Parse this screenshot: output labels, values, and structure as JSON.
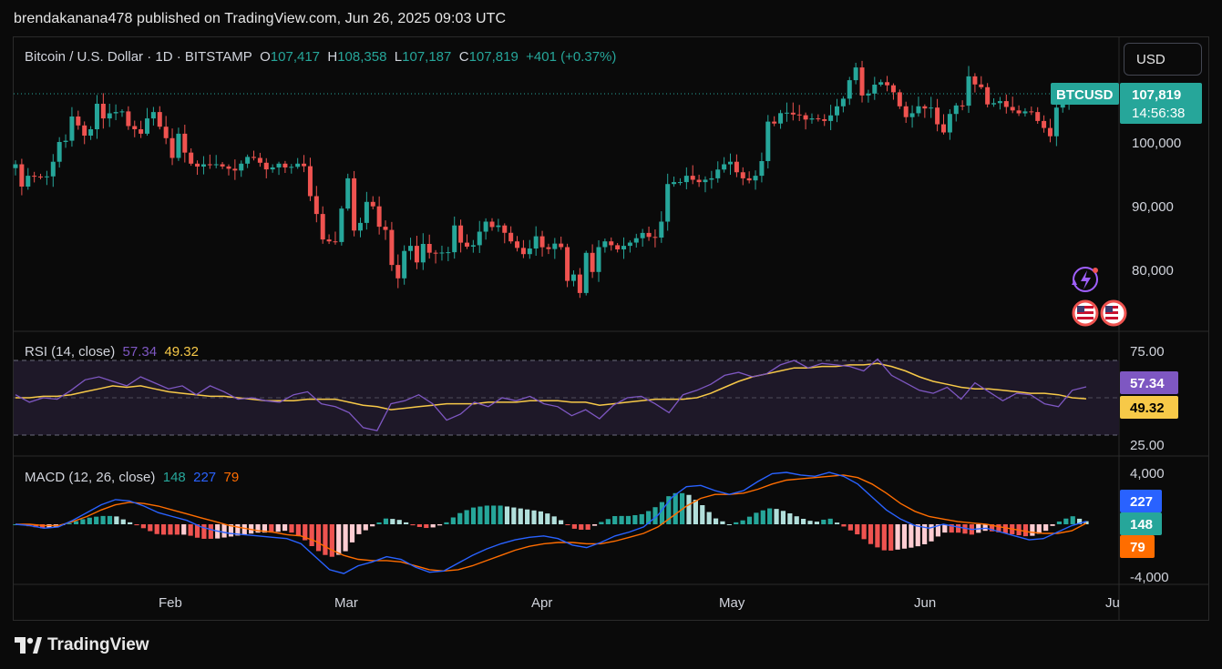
{
  "header": {
    "published": "brendakanana478 published on TradingView.com, Jun 26, 2025 09:03 UTC"
  },
  "currency_button": "USD",
  "symbol": {
    "title": "Bitcoin / U.S. Dollar · 1D · BITSTAMP",
    "o_label": "O",
    "o": "107,417",
    "h_label": "H",
    "h": "108,358",
    "l_label": "L",
    "l": "107,187",
    "c_label": "C",
    "c": "107,819",
    "change": "+401 (+0.37%)"
  },
  "price_tag": {
    "ticker": "BTCUSD",
    "price": "107,819",
    "countdown": "14:56:38"
  },
  "rsi": {
    "label": "RSI (14, close)",
    "value": "57.34",
    "ma": "49.32"
  },
  "macd": {
    "label": "MACD (12, 26, close)",
    "hist": "148",
    "macd": "227",
    "signal": "79"
  },
  "colors": {
    "up": "#26a69a",
    "down": "#ef5350",
    "rsi_line": "#7e57c2",
    "rsi_ma": "#f7c948",
    "macd_line": "#2962ff",
    "signal_line": "#ff6d00",
    "hist_up": "#26a69a",
    "hist_up_light": "#b2dfdb",
    "hist_down": "#ef5350",
    "hist_down_light": "#ffcdd2"
  },
  "logo_text": "TradingView",
  "chart_data": [
    {
      "type": "candlestick",
      "title": "Bitcoin / U.S. Dollar · 1D · BITSTAMP",
      "x_tick_labels": [
        "Feb",
        "Mar",
        "Apr",
        "May",
        "Jun",
        "Ju"
      ],
      "y_tick_labels": [
        "100,000",
        "90,000",
        "80,000"
      ],
      "ylim": [
        74000,
        113000
      ],
      "close_path": [
        [
          "2025-01-08",
          96500
        ],
        [
          "2025-01-09",
          93000
        ],
        [
          "2025-01-10",
          94700
        ],
        [
          "2025-01-12",
          94500
        ],
        [
          "2025-01-13",
          94600
        ],
        [
          "2025-01-14",
          96900
        ],
        [
          "2025-01-15",
          100000
        ],
        [
          "2025-01-16",
          100200
        ],
        [
          "2025-01-17",
          104000
        ],
        [
          "2025-01-19",
          101000
        ],
        [
          "2025-01-20",
          102000
        ],
        [
          "2025-01-21",
          106000
        ],
        [
          "2025-01-22",
          103700
        ],
        [
          "2025-01-23",
          104500
        ],
        [
          "2025-01-24",
          104700
        ],
        [
          "2025-01-25",
          104800
        ],
        [
          "2025-01-26",
          102500
        ],
        [
          "2025-01-27",
          102000
        ],
        [
          "2025-01-28",
          101300
        ],
        [
          "2025-01-29",
          103700
        ],
        [
          "2025-01-30",
          104700
        ],
        [
          "2025-01-31",
          102400
        ],
        [
          "2025-02-01",
          100600
        ],
        [
          "2025-02-02",
          97500
        ],
        [
          "2025-02-03",
          101300
        ],
        [
          "2025-02-05",
          96600
        ],
        [
          "2025-02-07",
          96500
        ],
        [
          "2025-02-09",
          96500
        ],
        [
          "2025-02-11",
          95800
        ],
        [
          "2025-02-13",
          96600
        ],
        [
          "2025-02-15",
          97500
        ],
        [
          "2025-02-17",
          95700
        ],
        [
          "2025-02-19",
          96600
        ],
        [
          "2025-02-21",
          96100
        ],
        [
          "2025-02-23",
          96200
        ],
        [
          "2025-02-24",
          91500
        ],
        [
          "2025-02-25",
          88700
        ],
        [
          "2025-02-26",
          84700
        ],
        [
          "2025-02-27",
          84400
        ],
        [
          "2025-02-28",
          84300
        ],
        [
          "2025-03-02",
          94300
        ],
        [
          "2025-03-03",
          86100
        ],
        [
          "2025-03-04",
          87300
        ],
        [
          "2025-03-05",
          90600
        ],
        [
          "2025-03-06",
          89900
        ],
        [
          "2025-03-07",
          86700
        ],
        [
          "2025-03-08",
          86200
        ],
        [
          "2025-03-09",
          80700
        ],
        [
          "2025-03-10",
          78600
        ],
        [
          "2025-03-11",
          82900
        ],
        [
          "2025-03-12",
          83700
        ],
        [
          "2025-03-13",
          81100
        ],
        [
          "2025-03-14",
          84000
        ],
        [
          "2025-03-16",
          82600
        ],
        [
          "2025-03-18",
          82700
        ],
        [
          "2025-03-19",
          86900
        ],
        [
          "2025-03-20",
          84200
        ],
        [
          "2025-03-22",
          83800
        ],
        [
          "2025-03-24",
          87500
        ],
        [
          "2025-03-26",
          86900
        ],
        [
          "2025-03-28",
          84400
        ],
        [
          "2025-03-30",
          82400
        ],
        [
          "2025-04-01",
          85200
        ],
        [
          "2025-04-03",
          83200
        ],
        [
          "2025-04-05",
          83500
        ],
        [
          "2025-04-06",
          78200
        ],
        [
          "2025-04-07",
          79200
        ],
        [
          "2025-04-08",
          76300
        ],
        [
          "2025-04-09",
          82600
        ],
        [
          "2025-04-10",
          79600
        ],
        [
          "2025-04-11",
          83500
        ],
        [
          "2025-04-13",
          83800
        ],
        [
          "2025-04-15",
          83700
        ],
        [
          "2025-04-17",
          84900
        ],
        [
          "2025-04-19",
          85100
        ],
        [
          "2025-04-20",
          85000
        ],
        [
          "2025-04-21",
          87500
        ],
        [
          "2025-04-22",
          93400
        ],
        [
          "2025-04-23",
          93700
        ],
        [
          "2025-04-25",
          94700
        ],
        [
          "2025-04-27",
          93700
        ],
        [
          "2025-04-29",
          94300
        ],
        [
          "2025-05-01",
          96500
        ],
        [
          "2025-05-02",
          96900
        ],
        [
          "2025-05-04",
          94300
        ],
        [
          "2025-05-06",
          94700
        ],
        [
          "2025-05-07",
          97000
        ],
        [
          "2025-05-08",
          103200
        ],
        [
          "2025-05-09",
          102900
        ],
        [
          "2025-05-11",
          104600
        ],
        [
          "2025-05-13",
          104200
        ],
        [
          "2025-05-15",
          103700
        ],
        [
          "2025-05-17",
          103300
        ],
        [
          "2025-05-19",
          105600
        ],
        [
          "2025-05-20",
          106800
        ],
        [
          "2025-05-21",
          109700
        ],
        [
          "2025-05-22",
          111700
        ],
        [
          "2025-05-23",
          107300
        ],
        [
          "2025-05-25",
          109000
        ],
        [
          "2025-05-27",
          108900
        ],
        [
          "2025-05-28",
          107800
        ],
        [
          "2025-05-29",
          105600
        ],
        [
          "2025-05-30",
          103900
        ],
        [
          "2025-06-01",
          105600
        ],
        [
          "2025-06-03",
          105400
        ],
        [
          "2025-06-05",
          101500
        ],
        [
          "2025-06-06",
          104400
        ],
        [
          "2025-06-08",
          105700
        ],
        [
          "2025-06-09",
          110300
        ],
        [
          "2025-06-11",
          108600
        ],
        [
          "2025-06-12",
          105900
        ],
        [
          "2025-06-13",
          106100
        ],
        [
          "2025-06-15",
          105500
        ],
        [
          "2025-06-17",
          104500
        ],
        [
          "2025-06-18",
          104800
        ],
        [
          "2025-06-19",
          104700
        ],
        [
          "2025-06-20",
          103300
        ],
        [
          "2025-06-21",
          102200
        ],
        [
          "2025-06-22",
          100900
        ],
        [
          "2025-06-23",
          105400
        ],
        [
          "2025-06-24",
          106000
        ],
        [
          "2025-06-25",
          107400
        ],
        [
          "2025-06-26",
          107819
        ]
      ],
      "last": {
        "open": 107417,
        "high": 108358,
        "low": 107187,
        "close": 107819
      }
    },
    {
      "type": "line",
      "title": "RSI (14, close)",
      "y_tick_labels": [
        "75.00",
        "25.00"
      ],
      "ylim": [
        20,
        80
      ],
      "band": [
        30,
        70
      ],
      "mid": 50,
      "series": [
        {
          "values": [
            52,
            47,
            50,
            49,
            55,
            62,
            64,
            61,
            58,
            64,
            60,
            56,
            58,
            52,
            58,
            54,
            49,
            50,
            48,
            47,
            52,
            54,
            46,
            44,
            40,
            30,
            28,
            46,
            48,
            52,
            46,
            35,
            39,
            47,
            44,
            50,
            48,
            51,
            46,
            44,
            38,
            42,
            36,
            45,
            50,
            51,
            46,
            40,
            52,
            55,
            59,
            65,
            67,
            64,
            66,
            72,
            75,
            70,
            73,
            72,
            71,
            68,
            76,
            65,
            60,
            55,
            53,
            57,
            49,
            60,
            54,
            48,
            53,
            52,
            46,
            44,
            55,
            57.34
          ]
        },
        {
          "values": [
            50,
            50,
            51,
            51,
            52,
            54,
            56,
            58,
            57,
            58,
            56,
            54,
            53,
            52,
            51,
            51,
            50,
            49,
            48,
            48,
            48,
            49,
            49,
            49,
            47,
            45,
            44,
            42,
            43,
            44,
            45,
            46,
            46,
            46,
            47,
            47,
            47,
            48,
            48,
            48,
            47,
            47,
            45,
            46,
            47,
            48,
            49,
            49,
            49,
            50,
            53,
            57,
            61,
            64,
            66,
            68,
            70,
            70,
            71,
            71,
            72,
            72,
            73,
            71,
            68,
            64,
            61,
            59,
            57,
            56,
            56,
            55,
            54,
            53,
            53,
            52,
            50,
            49.32
          ]
        }
      ]
    },
    {
      "type": "line",
      "title": "MACD (12, 26, close)",
      "y_tick_labels": [
        "4,000",
        "-4,000"
      ],
      "ylim": [
        -4000,
        4000
      ],
      "series": [
        {
          "values": [
            0,
            -100,
            -300,
            -200,
            300,
            900,
            1500,
            1900,
            1800,
            1400,
            900,
            600,
            300,
            -200,
            -500,
            -700,
            -800,
            -900,
            -1000,
            -1100,
            -1500,
            -2500,
            -3500,
            -3800,
            -3200,
            -2900,
            -2500,
            -2700,
            -3300,
            -3700,
            -3600,
            -3000,
            -2400,
            -1900,
            -1500,
            -1200,
            -1000,
            -900,
            -1100,
            -1600,
            -1800,
            -1400,
            -900,
            -600,
            -200,
            700,
            2100,
            2900,
            3000,
            2600,
            2300,
            2600,
            3300,
            3900,
            4000,
            3800,
            3700,
            4000,
            3700,
            3100,
            2100,
            1100,
            400,
            -100,
            -300,
            0,
            -200,
            -400,
            -300,
            -600,
            -900,
            -1200,
            -1100,
            -600,
            -100,
            227
          ]
        },
        {
          "values": [
            0,
            0,
            -100,
            -100,
            200,
            600,
            1100,
            1500,
            1700,
            1600,
            1400,
            1100,
            800,
            500,
            200,
            -100,
            -300,
            -500,
            -600,
            -800,
            -900,
            -1300,
            -1900,
            -2400,
            -2700,
            -2800,
            -2800,
            -2900,
            -3200,
            -3500,
            -3600,
            -3500,
            -3200,
            -2800,
            -2400,
            -2000,
            -1700,
            -1500,
            -1400,
            -1400,
            -1500,
            -1500,
            -1300,
            -1000,
            -700,
            -200,
            600,
            1400,
            2000,
            2300,
            2300,
            2400,
            2700,
            3100,
            3400,
            3500,
            3600,
            3700,
            3800,
            3600,
            3100,
            2400,
            1600,
            1000,
            600,
            400,
            200,
            100,
            0,
            -200,
            -400,
            -600,
            -700,
            -700,
            -500,
            79
          ]
        }
      ]
    }
  ]
}
